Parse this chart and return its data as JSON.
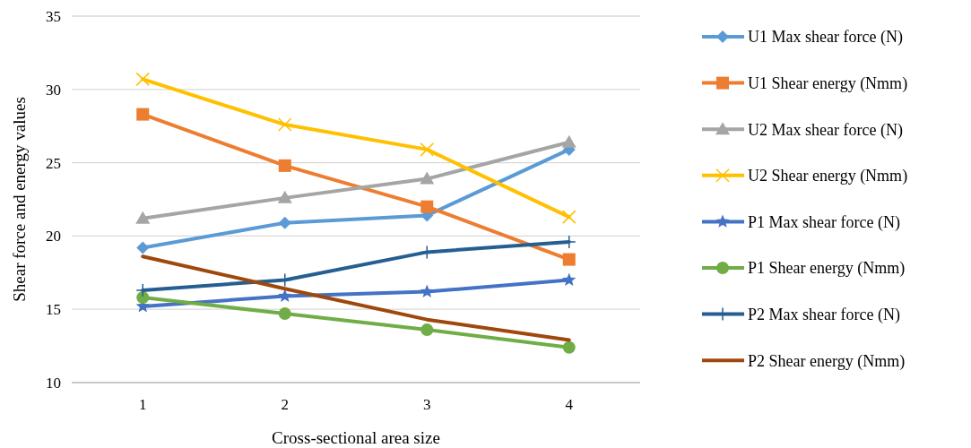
{
  "chart_data": {
    "type": "line",
    "xlabel": "Cross-sectional area size",
    "ylabel": "Shear force and energy values",
    "categories": [
      "1",
      "2",
      "3",
      "4"
    ],
    "ylim": [
      10,
      35
    ],
    "yticks": [
      10,
      15,
      20,
      25,
      30,
      35
    ],
    "grid": "y",
    "legend": "right",
    "series": [
      {
        "name": "U1 Max shear force (N)",
        "color": "#5b9bd5",
        "marker": "diamond",
        "values": [
          19.2,
          20.9,
          21.4,
          25.9
        ]
      },
      {
        "name": "U1 Shear energy (Nmm)",
        "color": "#ed7d31",
        "marker": "square",
        "values": [
          28.3,
          24.8,
          22.0,
          18.4
        ]
      },
      {
        "name": "U2 Max shear force (N)",
        "color": "#a5a5a5",
        "marker": "triangle",
        "values": [
          21.2,
          22.6,
          23.9,
          26.4
        ]
      },
      {
        "name": "U2 Shear energy (Nmm)",
        "color": "#ffc000",
        "marker": "cross",
        "values": [
          30.7,
          27.6,
          25.9,
          21.3
        ]
      },
      {
        "name": "P1 Max shear force (N)",
        "color": "#4472c4",
        "marker": "star",
        "values": [
          15.2,
          15.9,
          16.2,
          17.0
        ]
      },
      {
        "name": "P1 Shear energy (Nmm)",
        "color": "#70ad47",
        "marker": "circle",
        "values": [
          15.8,
          14.7,
          13.6,
          12.4
        ]
      },
      {
        "name": "P2 Max shear force (N)",
        "color": "#255e91",
        "marker": "plus",
        "values": [
          16.3,
          17.0,
          18.9,
          19.6
        ]
      },
      {
        "name": "P2 Shear energy (Nmm)",
        "color": "#9e480e",
        "marker": "none",
        "values": [
          18.6,
          16.4,
          14.3,
          12.9
        ]
      }
    ]
  }
}
